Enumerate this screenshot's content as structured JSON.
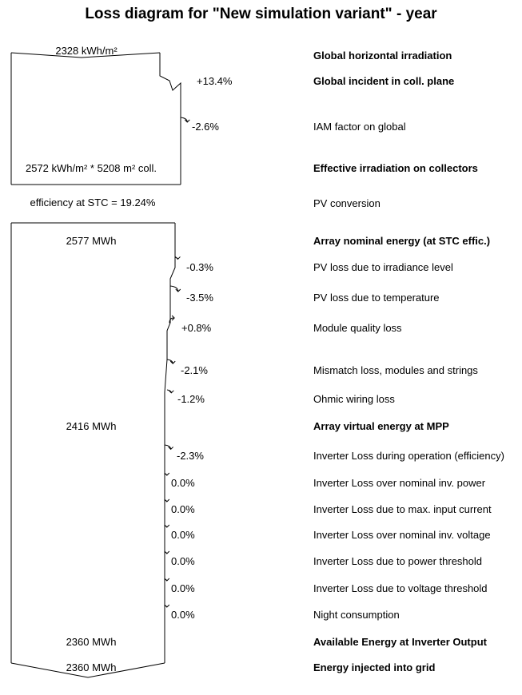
{
  "title": "Loss diagram for \"New simulation variant\" - year",
  "irradiation_section": {
    "top_value": "2328 kWh/m²",
    "effective_value": "2572 kWh/m² * 5208 m² coll."
  },
  "efficiency_text": "efficiency at STC = 19.24%",
  "energy_values": {
    "nominal": "2577 MWh",
    "virtual_mpp": "2416 MWh",
    "available": "2360 MWh",
    "injected": "2360 MWh"
  },
  "labels": [
    {
      "text": "Global horizontal irradiation",
      "bold": true
    },
    {
      "text": "Global incident in coll. plane",
      "bold": true
    },
    {
      "text": "IAM factor on global",
      "bold": false
    },
    {
      "text": "Effective irradiation on collectors",
      "bold": true
    },
    {
      "text": "PV conversion",
      "bold": false
    },
    {
      "text": "Array nominal energy (at STC effic.)",
      "bold": true
    },
    {
      "text": "PV loss due to irradiance level",
      "bold": false
    },
    {
      "text": "PV loss due to temperature",
      "bold": false
    },
    {
      "text": "Module quality loss",
      "bold": false
    },
    {
      "text": "Mismatch loss, modules and strings",
      "bold": false
    },
    {
      "text": "Ohmic wiring loss",
      "bold": false
    },
    {
      "text": "Array virtual energy at MPP",
      "bold": true
    },
    {
      "text": "Inverter Loss during operation (efficiency)",
      "bold": false
    },
    {
      "text": "Inverter Loss over nominal inv. power",
      "bold": false
    },
    {
      "text": "Inverter Loss due to max. input current",
      "bold": false
    },
    {
      "text": "Inverter Loss over nominal inv. voltage",
      "bold": false
    },
    {
      "text": "Inverter Loss due to power threshold",
      "bold": false
    },
    {
      "text": "Inverter Loss due to voltage threshold",
      "bold": false
    },
    {
      "text": "Night consumption",
      "bold": false
    },
    {
      "text": "Available Energy at Inverter Output",
      "bold": true
    },
    {
      "text": "Energy injected into grid",
      "bold": true
    }
  ],
  "steps": [
    {
      "name": "global-incident-gain",
      "text": "+13.4%",
      "value": 13.4,
      "kind": "gain"
    },
    {
      "name": "iam-loss",
      "text": "-2.6%",
      "value": -2.6,
      "kind": "loss"
    },
    {
      "name": "irradiance-level-loss",
      "text": "-0.3%",
      "value": -0.3,
      "kind": "loss"
    },
    {
      "name": "temperature-loss",
      "text": "-3.5%",
      "value": -3.5,
      "kind": "loss"
    },
    {
      "name": "module-quality-gain",
      "text": "+0.8%",
      "value": 0.8,
      "kind": "gain"
    },
    {
      "name": "mismatch-loss",
      "text": "-2.1%",
      "value": -2.1,
      "kind": "loss"
    },
    {
      "name": "ohmic-wiring-loss",
      "text": "-1.2%",
      "value": -1.2,
      "kind": "loss"
    },
    {
      "name": "inverter-operation-loss",
      "text": "-2.3%",
      "value": -2.3,
      "kind": "loss"
    },
    {
      "name": "inverter-nominal-power-loss",
      "text": "0.0%",
      "value": 0.0,
      "kind": "loss"
    },
    {
      "name": "inverter-max-current-loss",
      "text": "0.0%",
      "value": 0.0,
      "kind": "loss"
    },
    {
      "name": "inverter-nominal-voltage-loss",
      "text": "0.0%",
      "value": 0.0,
      "kind": "loss"
    },
    {
      "name": "inverter-power-threshold-loss",
      "text": "0.0%",
      "value": 0.0,
      "kind": "loss"
    },
    {
      "name": "inverter-voltage-threshold-loss",
      "text": "0.0%",
      "value": 0.0,
      "kind": "loss"
    },
    {
      "name": "night-consumption-loss",
      "text": "0.0%",
      "value": 0.0,
      "kind": "loss"
    }
  ]
}
